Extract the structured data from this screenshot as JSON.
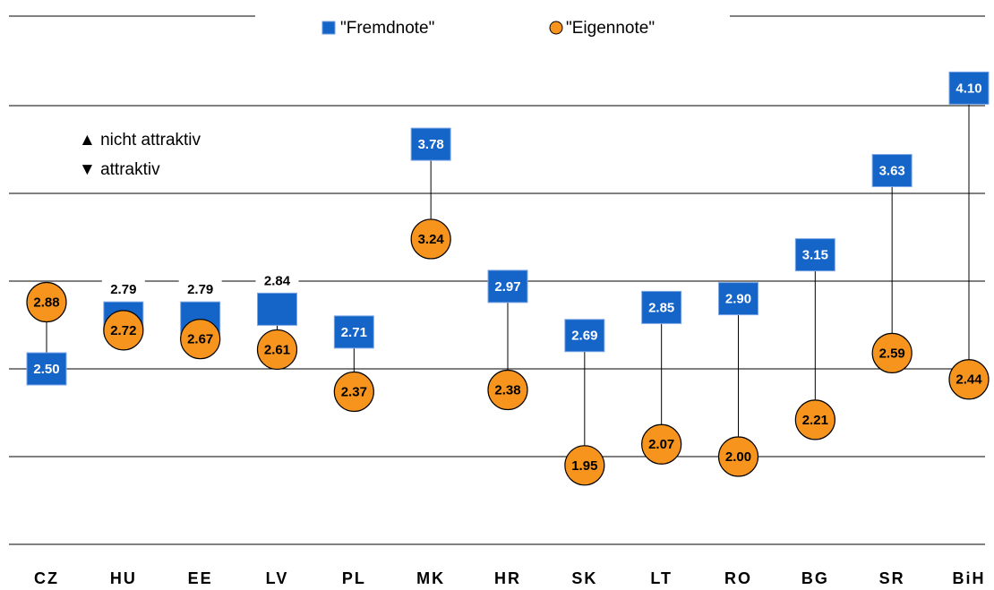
{
  "chart_data": {
    "type": "dumbbell",
    "categories": [
      "CZ",
      "HU",
      "EE",
      "LV",
      "PL",
      "MK",
      "HR",
      "SK",
      "LT",
      "RO",
      "BG",
      "SR",
      "BiH"
    ],
    "series": [
      {
        "name": "\"Fremdnote\"",
        "color": "#1565c8",
        "marker": "square",
        "values": [
          2.5,
          2.79,
          2.79,
          2.84,
          2.71,
          3.78,
          2.97,
          2.69,
          2.85,
          2.9,
          3.15,
          3.63,
          4.1
        ],
        "value_labels": [
          "2.50",
          "2.79",
          "2.79",
          "2.84",
          "2.71",
          "3.78",
          "2.97",
          "2.69",
          "2.85",
          "2.90",
          "3.15",
          "3.63",
          "4.10"
        ]
      },
      {
        "name": "\"Eigennote\"",
        "color": "#f7941d",
        "marker": "circle",
        "values": [
          2.88,
          2.72,
          2.67,
          2.61,
          2.37,
          3.24,
          2.38,
          1.95,
          2.07,
          2.0,
          2.21,
          2.59,
          2.44
        ],
        "value_labels": [
          "2.88",
          "2.72",
          "2.67",
          "2.61",
          "2.37",
          "3.24",
          "2.38",
          "1.95",
          "2.07",
          "2.00",
          "2.21",
          "2.59",
          "2.44"
        ]
      }
    ],
    "annotations": [
      "▲ nicht attraktiv",
      "▼ attraktiv"
    ],
    "ylim": [
      1.5,
      4.5
    ],
    "yticks": [
      1.5,
      2,
      2.5,
      3,
      3.5,
      4
    ],
    "grid": true
  }
}
